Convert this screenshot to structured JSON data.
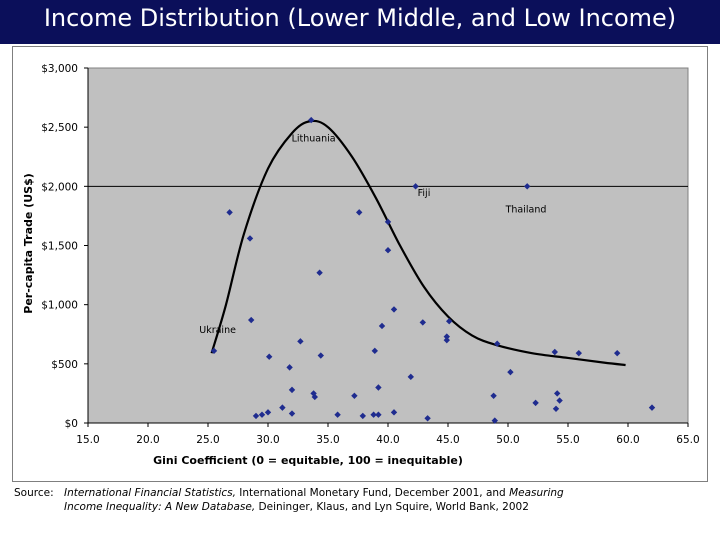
{
  "chart_data": {
    "type": "scatter",
    "title": "Income Distribution (Lower Middle, and Low Income)",
    "xlabel": "Gini Coefficient (0 = equitable, 100 = inequitable)",
    "ylabel": "Per-capita Trade (US$)",
    "xlim": [
      15,
      65
    ],
    "ylim": [
      0,
      3000
    ],
    "x_ticks": [
      "15.0",
      "20.0",
      "25.0",
      "30.0",
      "35.0",
      "40.0",
      "45.0",
      "50.0",
      "55.0",
      "60.0",
      "65.0"
    ],
    "y_ticks": [
      "$0",
      "$500",
      "$1,000",
      "$1,500",
      "$2,000",
      "$2,500",
      "$3,000"
    ],
    "reference_line_y": 2000,
    "point_color": "#1f2c8f",
    "plot_background": "#c0c0c0",
    "points": [
      {
        "x": 25.5,
        "y": 610
      },
      {
        "x": 26.8,
        "y": 1780
      },
      {
        "x": 28.5,
        "y": 1560
      },
      {
        "x": 28.6,
        "y": 870
      },
      {
        "x": 29.0,
        "y": 60
      },
      {
        "x": 29.5,
        "y": 70
      },
      {
        "x": 30.0,
        "y": 90
      },
      {
        "x": 30.1,
        "y": 560
      },
      {
        "x": 31.2,
        "y": 130
      },
      {
        "x": 31.8,
        "y": 470
      },
      {
        "x": 32.0,
        "y": 280
      },
      {
        "x": 32.0,
        "y": 80
      },
      {
        "x": 32.7,
        "y": 690
      },
      {
        "x": 33.6,
        "y": 2560
      },
      {
        "x": 33.8,
        "y": 250
      },
      {
        "x": 33.9,
        "y": 220
      },
      {
        "x": 34.3,
        "y": 1270
      },
      {
        "x": 34.4,
        "y": 570
      },
      {
        "x": 35.8,
        "y": 70
      },
      {
        "x": 37.2,
        "y": 230
      },
      {
        "x": 37.6,
        "y": 1780
      },
      {
        "x": 37.9,
        "y": 60
      },
      {
        "x": 38.8,
        "y": 70
      },
      {
        "x": 38.9,
        "y": 610
      },
      {
        "x": 39.2,
        "y": 300
      },
      {
        "x": 39.2,
        "y": 70
      },
      {
        "x": 39.5,
        "y": 820
      },
      {
        "x": 40.0,
        "y": 1700
      },
      {
        "x": 40.0,
        "y": 1460
      },
      {
        "x": 40.5,
        "y": 960
      },
      {
        "x": 40.5,
        "y": 90
      },
      {
        "x": 41.9,
        "y": 390
      },
      {
        "x": 42.3,
        "y": 2000
      },
      {
        "x": 42.9,
        "y": 850
      },
      {
        "x": 43.3,
        "y": 40
      },
      {
        "x": 44.9,
        "y": 730
      },
      {
        "x": 44.9,
        "y": 700
      },
      {
        "x": 45.1,
        "y": 860
      },
      {
        "x": 48.8,
        "y": 230
      },
      {
        "x": 48.9,
        "y": 20
      },
      {
        "x": 49.1,
        "y": 670
      },
      {
        "x": 50.2,
        "y": 430
      },
      {
        "x": 51.6,
        "y": 2000
      },
      {
        "x": 52.3,
        "y": 170
      },
      {
        "x": 53.9,
        "y": 600
      },
      {
        "x": 54.0,
        "y": 120
      },
      {
        "x": 54.1,
        "y": 250
      },
      {
        "x": 54.3,
        "y": 190
      },
      {
        "x": 55.9,
        "y": 590
      },
      {
        "x": 59.1,
        "y": 590
      },
      {
        "x": 62.0,
        "y": 130
      }
    ],
    "trend_curve": [
      {
        "x": 25.3,
        "y": 590
      },
      {
        "x": 26.5,
        "y": 1000
      },
      {
        "x": 28.0,
        "y": 1600
      },
      {
        "x": 30.0,
        "y": 2150
      },
      {
        "x": 32.0,
        "y": 2450
      },
      {
        "x": 33.5,
        "y": 2550
      },
      {
        "x": 35.0,
        "y": 2500
      },
      {
        "x": 37.0,
        "y": 2250
      },
      {
        "x": 39.0,
        "y": 1900
      },
      {
        "x": 41.0,
        "y": 1500
      },
      {
        "x": 43.0,
        "y": 1150
      },
      {
        "x": 45.0,
        "y": 900
      },
      {
        "x": 47.0,
        "y": 740
      },
      {
        "x": 49.0,
        "y": 660
      },
      {
        "x": 52.0,
        "y": 590
      },
      {
        "x": 55.0,
        "y": 550
      },
      {
        "x": 58.0,
        "y": 510
      },
      {
        "x": 59.8,
        "y": 490
      }
    ],
    "annotations": [
      {
        "text": "Lithuania",
        "x": 33.8,
        "y": 2380
      },
      {
        "text": "Fiji",
        "x": 43.0,
        "y": 1920
      },
      {
        "text": "Thailand",
        "x": 51.5,
        "y": 1780
      },
      {
        "text": "Ukraine",
        "x": 25.8,
        "y": 760
      }
    ]
  },
  "source": {
    "label": "Source:",
    "line1_italic_a": "International Financial Statistics,",
    "line1_plain": " International Monetary Fund, December 2001, and ",
    "line1_italic_b": "Measuring",
    "line2_italic": "Income Inequality: A New Database,",
    "line2_plain": " Deininger, Klaus, and Lyn Squire, World Bank, 2002"
  }
}
